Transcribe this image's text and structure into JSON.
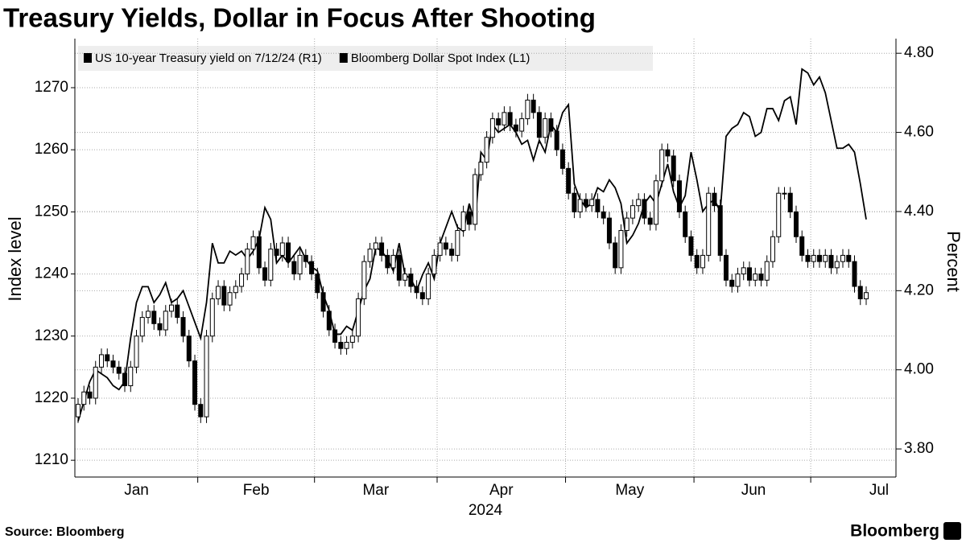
{
  "chart_data": {
    "type": "candlestick",
    "title": "Treasury Yields, Dollar in Focus After Shooting",
    "xlabel": "2024",
    "ylabel": "Index level",
    "y2label": "Percent",
    "source": "Source: Bloomberg",
    "brand": "Bloomberg",
    "categories": [
      null,
      null,
      null,
      null,
      null,
      null,
      null,
      null,
      null,
      null,
      null,
      null,
      null,
      null,
      null,
      null,
      null,
      null,
      null,
      null,
      null,
      null,
      null,
      null,
      null,
      null,
      null,
      null,
      null,
      null,
      null,
      null,
      null,
      null,
      null,
      null,
      null,
      null,
      null,
      null,
      null,
      null,
      null,
      null,
      null,
      null,
      null,
      null,
      null,
      null,
      null,
      null,
      null,
      null,
      null,
      null,
      null,
      null,
      null,
      null,
      null,
      null,
      null,
      null,
      null,
      null,
      null,
      null,
      null,
      null,
      null,
      null,
      null,
      null,
      null,
      null,
      null,
      null,
      null,
      null,
      null,
      null,
      null,
      null,
      null,
      null,
      null,
      null,
      null,
      null,
      null,
      null,
      null,
      null,
      null,
      null,
      null,
      null,
      null,
      null,
      null,
      null,
      null,
      null,
      null,
      null,
      null,
      null,
      null,
      null,
      null,
      null,
      null,
      null,
      null,
      null,
      null,
      null,
      null,
      null,
      null,
      null,
      null,
      null,
      null,
      null,
      null,
      null,
      null,
      null,
      null,
      null,
      null,
      null,
      null,
      null
    ],
    "xlim": [
      -0.55,
      140.1
    ],
    "xticks": [
      {
        "value": 10,
        "label": "Jan"
      },
      {
        "value": 30.5,
        "label": "Feb"
      },
      {
        "value": 51,
        "label": "Mar"
      },
      {
        "value": 72.5,
        "label": "Apr"
      },
      {
        "value": 94.5,
        "label": "May"
      },
      {
        "value": 115.7,
        "label": "Jun"
      },
      {
        "value": 137.2,
        "label": "Jul"
      }
    ],
    "xgrid": [
      20.5,
      40.5,
      61.5,
      83.5,
      105.5,
      125.5
    ],
    "ylim": [
      1207.3,
      1277.9
    ],
    "yticks": [
      1210,
      1220,
      1230,
      1240,
      1250,
      1260,
      1270
    ],
    "y2lim": [
      3.729,
      4.837
    ],
    "y2ticks": [
      {
        "value": 3.8,
        "label": "3.80"
      },
      {
        "value": 4.0,
        "label": "4.00"
      },
      {
        "value": 4.2,
        "label": "4.20"
      },
      {
        "value": 4.4,
        "label": "4.40"
      },
      {
        "value": 4.6,
        "label": "4.60"
      },
      {
        "value": 4.8,
        "label": "4.80"
      }
    ],
    "grid": true,
    "legend": "top-left",
    "series": [
      {
        "name": "US 10-year Treasury yield on 7/12/24 (R1)",
        "type": "line",
        "axis": "y2",
        "color": "#000000",
        "values": [
          3.87,
          3.92,
          3.97,
          4.0,
          3.99,
          3.98,
          3.96,
          3.95,
          3.97,
          4.08,
          4.17,
          4.21,
          4.21,
          4.17,
          4.19,
          4.22,
          4.17,
          4.18,
          4.2,
          4.16,
          4.12,
          4.08,
          4.17,
          4.32,
          4.27,
          4.27,
          4.3,
          4.29,
          4.3,
          4.28,
          4.3,
          4.33,
          4.41,
          4.38,
          4.27,
          4.29,
          4.27,
          4.29,
          4.31,
          4.28,
          4.26,
          4.25,
          4.19,
          4.15,
          4.09,
          4.09,
          4.11,
          4.1,
          4.15,
          4.2,
          4.23,
          4.31,
          4.3,
          4.28,
          4.25,
          4.32,
          4.24,
          4.23,
          4.2,
          4.24,
          4.27,
          4.23,
          4.32,
          4.36,
          4.4,
          4.36,
          4.35,
          4.42,
          4.37,
          4.55,
          4.53,
          4.62,
          4.6,
          4.61,
          4.62,
          4.6,
          4.57,
          4.58,
          4.53,
          4.58,
          4.55,
          4.62,
          4.6,
          4.65,
          4.67,
          4.47,
          4.43,
          4.41,
          4.42,
          4.46,
          4.45,
          4.48,
          4.46,
          4.42,
          4.32,
          4.34,
          4.37,
          4.42,
          4.44,
          4.42,
          4.47,
          4.52,
          4.45,
          4.41,
          4.44,
          4.55,
          4.48,
          4.4,
          4.42,
          4.43,
          4.4,
          4.59,
          4.61,
          4.62,
          4.65,
          4.64,
          4.59,
          4.6,
          4.66,
          4.66,
          4.63,
          4.68,
          4.69,
          4.62,
          4.76,
          4.75,
          4.72,
          4.74,
          4.7,
          4.63,
          4.56,
          4.56,
          4.57,
          4.55,
          4.47,
          4.38
        ]
      },
      {
        "name": "Bloomberg Dollar Spot Index (L1)",
        "type": "candlestick",
        "up_color": "#ffffff",
        "down_color": "#000000",
        "color": "#000000",
        "open": [
          1217,
          1219,
          1221,
          1220,
          1225,
          1227,
          1226,
          1225,
          1224,
          1222,
          1225,
          1230,
          1233,
          1234,
          1232,
          1231,
          1234,
          1235,
          1233,
          1230,
          1226,
          1219,
          1217,
          1230,
          1236,
          1238,
          1235,
          1237,
          1238,
          1240,
          1244,
          1246,
          1241,
          1239,
          1244,
          1243,
          1245,
          1242,
          1240,
          1243,
          1242,
          1240,
          1237,
          1234,
          1231,
          1229,
          1228,
          1229,
          1230,
          1236,
          1242,
          1244,
          1245,
          1243,
          1241,
          1243,
          1239,
          1240,
          1238,
          1237,
          1236,
          1240,
          1243,
          1245,
          1244,
          1243,
          1247,
          1250,
          1248,
          1256,
          1258,
          1262,
          1265,
          1264,
          1266,
          1264,
          1263,
          1265,
          1268,
          1266,
          1262,
          1265,
          1263,
          1260,
          1257,
          1253,
          1250,
          1252,
          1251,
          1252,
          1250,
          1249,
          1245,
          1241,
          1247,
          1249,
          1251,
          1252,
          1249,
          1248,
          1255,
          1260,
          1259,
          1255,
          1250,
          1246,
          1243,
          1241,
          1243,
          1253,
          1251,
          1243,
          1239,
          1238,
          1240,
          1241,
          1239,
          1240,
          1239,
          1242,
          1246,
          1253,
          1253,
          1250,
          1246,
          1243,
          1242,
          1243,
          1242,
          1243,
          1241,
          1242,
          1243,
          1242,
          1238,
          1236
        ],
        "high": [
          1220,
          1222,
          1222,
          1226,
          1228,
          1228,
          1227,
          1226,
          1225,
          1226,
          1231,
          1234,
          1235,
          1235,
          1233,
          1235,
          1236,
          1236,
          1234,
          1231,
          1227,
          1220,
          1231,
          1237,
          1239,
          1239,
          1238,
          1239,
          1241,
          1245,
          1247,
          1247,
          1242,
          1245,
          1245,
          1246,
          1246,
          1243,
          1244,
          1244,
          1243,
          1241,
          1238,
          1235,
          1232,
          1230,
          1230,
          1231,
          1237,
          1243,
          1245,
          1246,
          1246,
          1244,
          1244,
          1244,
          1241,
          1241,
          1239,
          1238,
          1241,
          1244,
          1246,
          1246,
          1245,
          1248,
          1251,
          1251,
          1257,
          1259,
          1263,
          1266,
          1266,
          1267,
          1267,
          1265,
          1266,
          1269,
          1269,
          1267,
          1266,
          1266,
          1264,
          1261,
          1258,
          1254,
          1253,
          1253,
          1253,
          1253,
          1251,
          1250,
          1246,
          1248,
          1250,
          1252,
          1253,
          1253,
          1250,
          1256,
          1261,
          1261,
          1260,
          1256,
          1251,
          1247,
          1244,
          1244,
          1254,
          1254,
          1252,
          1244,
          1240,
          1241,
          1242,
          1242,
          1241,
          1241,
          1243,
          1247,
          1254,
          1254,
          1254,
          1251,
          1247,
          1244,
          1244,
          1244,
          1244,
          1244,
          1243,
          1244,
          1244,
          1243,
          1239,
          1238
        ],
        "low": [
          1216,
          1218,
          1219,
          1219,
          1224,
          1225,
          1224,
          1223,
          1221,
          1221,
          1224,
          1229,
          1232,
          1231,
          1230,
          1230,
          1233,
          1232,
          1229,
          1225,
          1218,
          1216,
          1216,
          1229,
          1235,
          1234,
          1234,
          1236,
          1237,
          1239,
          1243,
          1240,
          1238,
          1238,
          1242,
          1242,
          1241,
          1239,
          1239,
          1241,
          1239,
          1236,
          1233,
          1230,
          1228,
          1227,
          1227,
          1228,
          1229,
          1235,
          1241,
          1243,
          1242,
          1240,
          1240,
          1238,
          1238,
          1237,
          1236,
          1235,
          1235,
          1239,
          1242,
          1243,
          1242,
          1242,
          1246,
          1247,
          1247,
          1255,
          1257,
          1261,
          1263,
          1263,
          1263,
          1262,
          1262,
          1264,
          1265,
          1261,
          1261,
          1262,
          1259,
          1256,
          1252,
          1249,
          1249,
          1250,
          1250,
          1249,
          1248,
          1244,
          1240,
          1240,
          1246,
          1248,
          1250,
          1248,
          1247,
          1247,
          1254,
          1258,
          1254,
          1249,
          1245,
          1242,
          1240,
          1240,
          1242,
          1250,
          1242,
          1238,
          1237,
          1237,
          1239,
          1238,
          1238,
          1238,
          1238,
          1241,
          1245,
          1252,
          1249,
          1245,
          1242,
          1241,
          1241,
          1241,
          1241,
          1240,
          1240,
          1241,
          1241,
          1237,
          1235,
          1235
        ],
        "close": [
          1219,
          1221,
          1220,
          1225,
          1227,
          1226,
          1225,
          1224,
          1222,
          1225,
          1230,
          1233,
          1234,
          1232,
          1231,
          1234,
          1235,
          1233,
          1230,
          1226,
          1219,
          1217,
          1230,
          1236,
          1238,
          1235,
          1237,
          1238,
          1240,
          1244,
          1246,
          1241,
          1239,
          1244,
          1243,
          1245,
          1242,
          1240,
          1243,
          1242,
          1240,
          1237,
          1234,
          1231,
          1229,
          1228,
          1229,
          1230,
          1236,
          1242,
          1244,
          1245,
          1243,
          1241,
          1243,
          1239,
          1240,
          1238,
          1237,
          1236,
          1240,
          1243,
          1245,
          1244,
          1243,
          1247,
          1250,
          1248,
          1256,
          1258,
          1262,
          1265,
          1264,
          1266,
          1264,
          1263,
          1265,
          1268,
          1266,
          1262,
          1265,
          1263,
          1260,
          1257,
          1253,
          1250,
          1252,
          1251,
          1252,
          1250,
          1249,
          1245,
          1241,
          1247,
          1249,
          1251,
          1252,
          1249,
          1248,
          1255,
          1260,
          1259,
          1255,
          1250,
          1246,
          1243,
          1241,
          1243,
          1253,
          1251,
          1243,
          1239,
          1238,
          1240,
          1241,
          1239,
          1240,
          1239,
          1242,
          1246,
          1253,
          1253,
          1250,
          1246,
          1243,
          1242,
          1243,
          1242,
          1243,
          1241,
          1242,
          1243,
          1242,
          1238,
          1236,
          1237
        ]
      }
    ]
  }
}
